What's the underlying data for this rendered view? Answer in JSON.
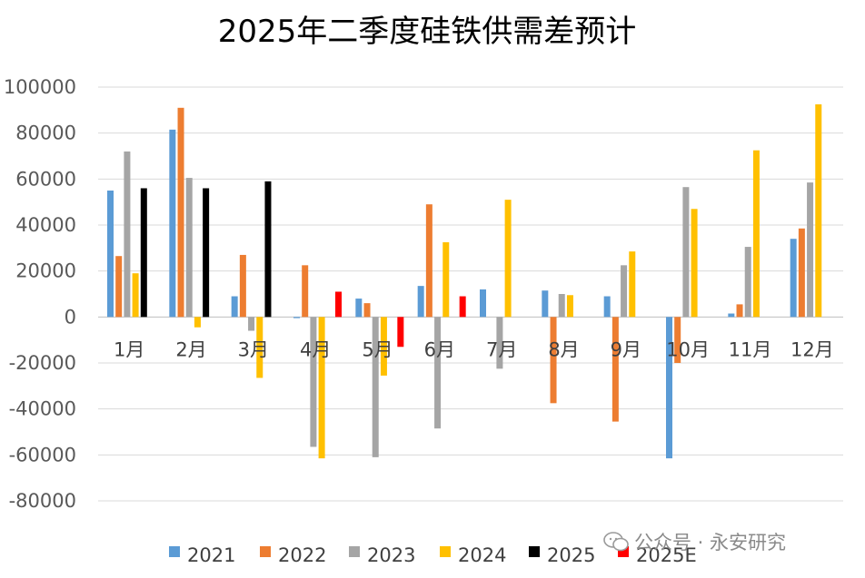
{
  "chart_data": {
    "type": "bar",
    "title": "2025年二季度硅铁供需差预计",
    "categories": [
      "1月",
      "2月",
      "3月",
      "4月",
      "5月",
      "6月",
      "7月",
      "8月",
      "9月",
      "10月",
      "11月",
      "12月"
    ],
    "ylim": [
      -80000,
      100000
    ],
    "yticks": [
      100000,
      80000,
      60000,
      40000,
      20000,
      0,
      -20000,
      -40000,
      -60000,
      -80000
    ],
    "grid": true,
    "legend_position": "bottom",
    "series": [
      {
        "name": "2021",
        "color": "#5B9BD5",
        "values": [
          55000,
          81500,
          9000,
          -500,
          8000,
          13500,
          12000,
          11500,
          9000,
          -61500,
          1500,
          34000
        ]
      },
      {
        "name": "2022",
        "color": "#ED7D31",
        "values": [
          26500,
          91000,
          27000,
          22500,
          6000,
          49000,
          null,
          -37500,
          -45500,
          -20000,
          5500,
          38500
        ]
      },
      {
        "name": "2023",
        "color": "#A5A5A5",
        "values": [
          72000,
          60500,
          -6000,
          -56500,
          -61000,
          -48500,
          -22500,
          10000,
          22500,
          56500,
          30500,
          58500
        ]
      },
      {
        "name": "2024",
        "color": "#FFC000",
        "values": [
          19000,
          -4500,
          -26500,
          -61500,
          -25500,
          32500,
          51000,
          9500,
          28500,
          47000,
          72500,
          92500
        ]
      },
      {
        "name": "2025",
        "color": "#000000",
        "values": [
          56000,
          56000,
          59000,
          null,
          null,
          null,
          null,
          null,
          null,
          null,
          null,
          null
        ]
      },
      {
        "name": "2025E",
        "color": "#FF0000",
        "values": [
          null,
          null,
          null,
          11000,
          -13000,
          9000,
          null,
          null,
          null,
          null,
          null,
          null
        ]
      }
    ]
  },
  "watermark": {
    "text": "公众号 · 永安研究",
    "icon": "wechat-icon"
  }
}
